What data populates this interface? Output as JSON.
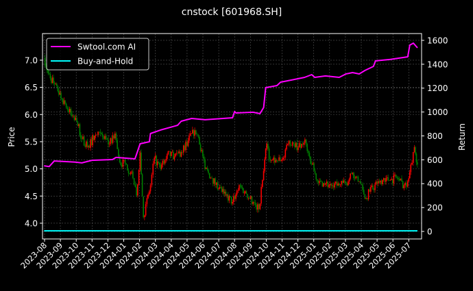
{
  "chart_data": {
    "type": "line",
    "title": "cnstock [601968.SH]",
    "ylabel_left": "Price",
    "ylabel_right": "Return",
    "ylim_left": [
      3.71,
      7.49
    ],
    "ylim_right": [
      -63,
      1657
    ],
    "yticks_left": [
      "4.0",
      "4.5",
      "5.0",
      "5.5",
      "6.0",
      "6.5",
      "7.0"
    ],
    "yticks_right": [
      "0",
      "200",
      "400",
      "600",
      "800",
      "1000",
      "1200",
      "1400",
      "1600"
    ],
    "xticks": [
      "2023-08",
      "2023-09",
      "2023-10",
      "2023-11",
      "2023-12",
      "2024-01",
      "2024-02",
      "2024-03",
      "2024-04",
      "2024-05",
      "2024-06",
      "2024-07",
      "2024-08",
      "2024-09",
      "2024-10",
      "2024-11",
      "2024-12",
      "2025-01",
      "2025-02",
      "2025-03",
      "2025-04",
      "2025-05",
      "2025-06",
      "2025-07"
    ],
    "grid": true,
    "legend_position": "top-left",
    "colors": {
      "background": "#000000",
      "up": "#ff0000",
      "down": "#008000",
      "strategy": "#ff00ff",
      "buy_hold": "#00ffff",
      "grid": "#555555"
    },
    "price": {
      "type": "candlestick",
      "points": [
        [
          "2023-07-31",
          7.05
        ],
        [
          "2023-08-08",
          6.76
        ],
        [
          "2023-08-27",
          6.43
        ],
        [
          "2023-09-10",
          6.2
        ],
        [
          "2023-09-23",
          5.97
        ],
        [
          "2023-10-02",
          5.87
        ],
        [
          "2023-10-12",
          5.55
        ],
        [
          "2023-10-25",
          5.42
        ],
        [
          "2023-11-08",
          5.63
        ],
        [
          "2023-11-21",
          5.59
        ],
        [
          "2023-12-04",
          5.46
        ],
        [
          "2023-12-15",
          5.65
        ],
        [
          "2023-12-24",
          5.12
        ],
        [
          "2024-01-06",
          5.08
        ],
        [
          "2024-01-19",
          4.83
        ],
        [
          "2024-01-26",
          4.51
        ],
        [
          "2024-02-02",
          5.3
        ],
        [
          "2024-02-08",
          4.11
        ],
        [
          "2024-02-21",
          4.7
        ],
        [
          "2024-02-28",
          5.2
        ],
        [
          "2024-03-11",
          5.0
        ],
        [
          "2024-03-24",
          5.27
        ],
        [
          "2024-04-07",
          5.23
        ],
        [
          "2024-04-20",
          5.31
        ],
        [
          "2024-05-03",
          5.52
        ],
        [
          "2024-05-16",
          5.71
        ],
        [
          "2024-05-23",
          5.59
        ],
        [
          "2024-06-05",
          5.0
        ],
        [
          "2024-06-18",
          4.83
        ],
        [
          "2024-07-01",
          4.64
        ],
        [
          "2024-07-15",
          4.51
        ],
        [
          "2024-07-28",
          4.39
        ],
        [
          "2024-08-10",
          4.7
        ],
        [
          "2024-08-24",
          4.54
        ],
        [
          "2024-09-06",
          4.39
        ],
        [
          "2024-09-17",
          4.26
        ],
        [
          "2024-09-26",
          4.96
        ],
        [
          "2024-10-02",
          5.46
        ],
        [
          "2024-10-09",
          5.15
        ],
        [
          "2024-10-22",
          5.15
        ],
        [
          "2024-11-05",
          5.21
        ],
        [
          "2024-11-14",
          5.52
        ],
        [
          "2024-11-25",
          5.4
        ],
        [
          "2024-12-08",
          5.46
        ],
        [
          "2024-12-17",
          5.46
        ],
        [
          "2024-12-28",
          5.08
        ],
        [
          "2025-01-10",
          4.74
        ],
        [
          "2025-01-24",
          4.73
        ],
        [
          "2025-02-06",
          4.7
        ],
        [
          "2025-02-18",
          4.7
        ],
        [
          "2025-03-02",
          4.73
        ],
        [
          "2025-03-15",
          4.93
        ],
        [
          "2025-03-28",
          4.77
        ],
        [
          "2025-04-08",
          4.45
        ],
        [
          "2025-04-17",
          4.58
        ],
        [
          "2025-05-01",
          4.73
        ],
        [
          "2025-05-14",
          4.83
        ],
        [
          "2025-05-27",
          4.8
        ],
        [
          "2025-06-09",
          4.83
        ],
        [
          "2025-06-22",
          4.7
        ],
        [
          "2025-06-29",
          4.77
        ],
        [
          "2025-07-05",
          5.08
        ],
        [
          "2025-07-12",
          5.4
        ],
        [
          "2025-07-16",
          5.12
        ],
        [
          "2025-07-18",
          5.08
        ]
      ]
    },
    "series": [
      {
        "name": "Swtool.com AI",
        "axis": "right",
        "points": [
          [
            "2023-07-31",
            550
          ],
          [
            "2023-08-10",
            543
          ],
          [
            "2023-08-20",
            590
          ],
          [
            "2023-09-29",
            580
          ],
          [
            "2023-10-12",
            574
          ],
          [
            "2023-11-01",
            596
          ],
          [
            "2023-12-10",
            602
          ],
          [
            "2023-12-17",
            620
          ],
          [
            "2024-01-23",
            608
          ],
          [
            "2024-02-02",
            734
          ],
          [
            "2024-02-19",
            751
          ],
          [
            "2024-02-21",
            820
          ],
          [
            "2024-03-11",
            849
          ],
          [
            "2024-04-13",
            889
          ],
          [
            "2024-04-20",
            923
          ],
          [
            "2024-05-10",
            946
          ],
          [
            "2024-06-05",
            935
          ],
          [
            "2024-07-28",
            952
          ],
          [
            "2024-08-01",
            1004
          ],
          [
            "2024-08-04",
            992
          ],
          [
            "2024-09-06",
            998
          ],
          [
            "2024-09-19",
            986
          ],
          [
            "2024-09-26",
            1038
          ],
          [
            "2024-09-30",
            1204
          ],
          [
            "2024-10-22",
            1221
          ],
          [
            "2024-10-29",
            1250
          ],
          [
            "2024-11-18",
            1267
          ],
          [
            "2024-12-14",
            1290
          ],
          [
            "2024-12-28",
            1313
          ],
          [
            "2025-01-03",
            1290
          ],
          [
            "2025-01-24",
            1302
          ],
          [
            "2025-02-18",
            1290
          ],
          [
            "2025-03-02",
            1319
          ],
          [
            "2025-03-15",
            1330
          ],
          [
            "2025-03-28",
            1319
          ],
          [
            "2025-04-08",
            1348
          ],
          [
            "2025-04-24",
            1382
          ],
          [
            "2025-04-28",
            1428
          ],
          [
            "2025-05-27",
            1440
          ],
          [
            "2025-06-29",
            1462
          ],
          [
            "2025-07-03",
            1560
          ],
          [
            "2025-07-10",
            1577
          ],
          [
            "2025-07-18",
            1537
          ]
        ]
      },
      {
        "name": "Buy-and-Hold",
        "axis": "right",
        "points": [
          [
            "2023-07-31",
            5
          ],
          [
            "2025-07-18",
            5
          ]
        ]
      }
    ]
  }
}
